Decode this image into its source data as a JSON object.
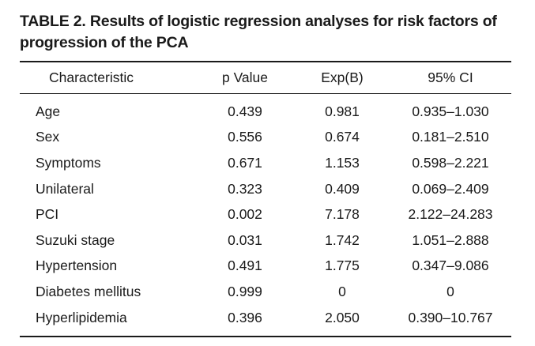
{
  "table": {
    "caption": "TABLE 2. Results of logistic regression analyses for risk factors of progression of the PCA",
    "headers": [
      "Characteristic",
      "p Value",
      "Exp(B)",
      "95% CI"
    ],
    "rows": [
      [
        "Age",
        "0.439",
        "0.981",
        "0.935–1.030"
      ],
      [
        "Sex",
        "0.556",
        "0.674",
        "0.181–2.510"
      ],
      [
        "Symptoms",
        "0.671",
        "1.153",
        "0.598–2.221"
      ],
      [
        "Unilateral",
        "0.323",
        "0.409",
        "0.069–2.409"
      ],
      [
        "PCI",
        "0.002",
        "7.178",
        "2.122–24.283"
      ],
      [
        "Suzuki stage",
        "0.031",
        "1.742",
        "1.051–2.888"
      ],
      [
        "Hypertension",
        "0.491",
        "1.775",
        "0.347–9.086"
      ],
      [
        "Diabetes mellitus",
        "0.999",
        "0",
        "0"
      ],
      [
        "Hyperlipidemia",
        "0.396",
        "2.050",
        "0.390–10.767"
      ]
    ]
  }
}
